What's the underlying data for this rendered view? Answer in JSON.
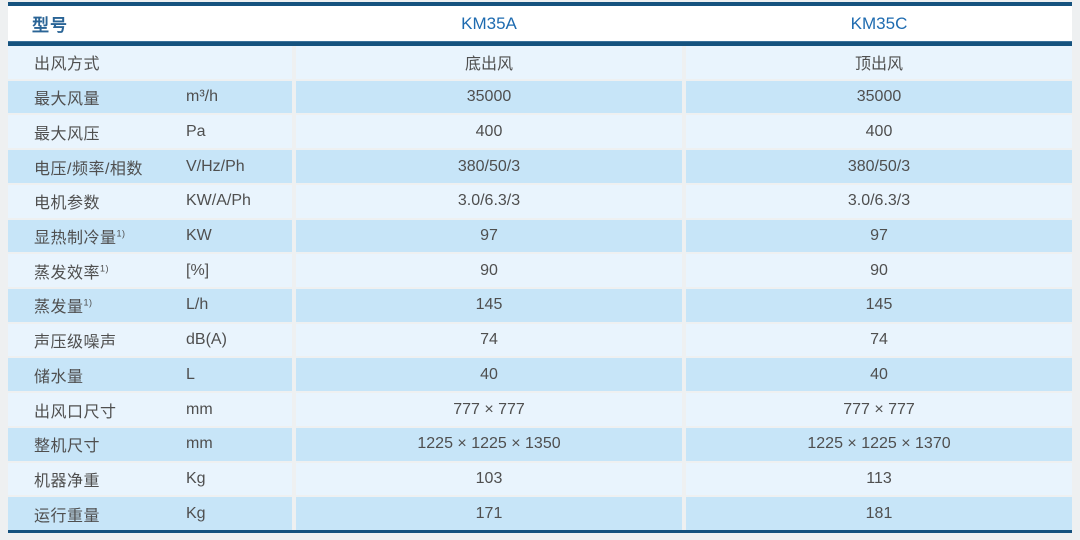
{
  "table": {
    "header": {
      "model_label": "型号",
      "columns": [
        "KM35A",
        "KM35C"
      ]
    },
    "rows": [
      {
        "label": "出风方式",
        "sup": "",
        "unit": "",
        "km35a": "底出风",
        "km35c": "顶出风"
      },
      {
        "label": "最大风量",
        "sup": "",
        "unit": "m³/h",
        "km35a": "35000",
        "km35c": "35000"
      },
      {
        "label": "最大风压",
        "sup": "",
        "unit": "Pa",
        "km35a": "400",
        "km35c": "400"
      },
      {
        "label": "电压/频率/相数",
        "sup": "",
        "unit": "V/Hz/Ph",
        "km35a": "380/50/3",
        "km35c": "380/50/3"
      },
      {
        "label": "电机参数",
        "sup": "",
        "unit": "KW/A/Ph",
        "km35a": "3.0/6.3/3",
        "km35c": "3.0/6.3/3"
      },
      {
        "label": "显热制冷量",
        "sup": "1)",
        "unit": "KW",
        "km35a": "97",
        "km35c": "97"
      },
      {
        "label": "蒸发效率",
        "sup": "1)",
        "unit": "[%]",
        "km35a": "90",
        "km35c": "90"
      },
      {
        "label": "蒸发量",
        "sup": "1)",
        "unit": "L/h",
        "km35a": "145",
        "km35c": "145"
      },
      {
        "label": "声压级噪声",
        "sup": "",
        "unit": "dB(A)",
        "km35a": "74",
        "km35c": "74"
      },
      {
        "label": "储水量",
        "sup": "",
        "unit": "L",
        "km35a": "40",
        "km35c": "40"
      },
      {
        "label": "出风口尺寸",
        "sup": "",
        "unit": "mm",
        "km35a": "777 × 777",
        "km35c": "777 × 777"
      },
      {
        "label": "整机尺寸",
        "sup": "",
        "unit": "mm",
        "km35a": "1225 × 1225 × 1350",
        "km35c": "1225 × 1225 × 1370"
      },
      {
        "label": "机器净重",
        "sup": "",
        "unit": "Kg",
        "km35a": "103",
        "km35c": "113"
      },
      {
        "label": "运行重量",
        "sup": "",
        "unit": "Kg",
        "km35a": "171",
        "km35c": "181"
      }
    ],
    "colors": {
      "rule_navy": "#15527e",
      "row_light": "#e9f4fd",
      "row_shade": "#c7e5f8",
      "header_label_text": "#2a6496",
      "model_text": "#1e6bb0",
      "body_text": "#4f4f4f",
      "page_background": "#eef0f1"
    }
  }
}
